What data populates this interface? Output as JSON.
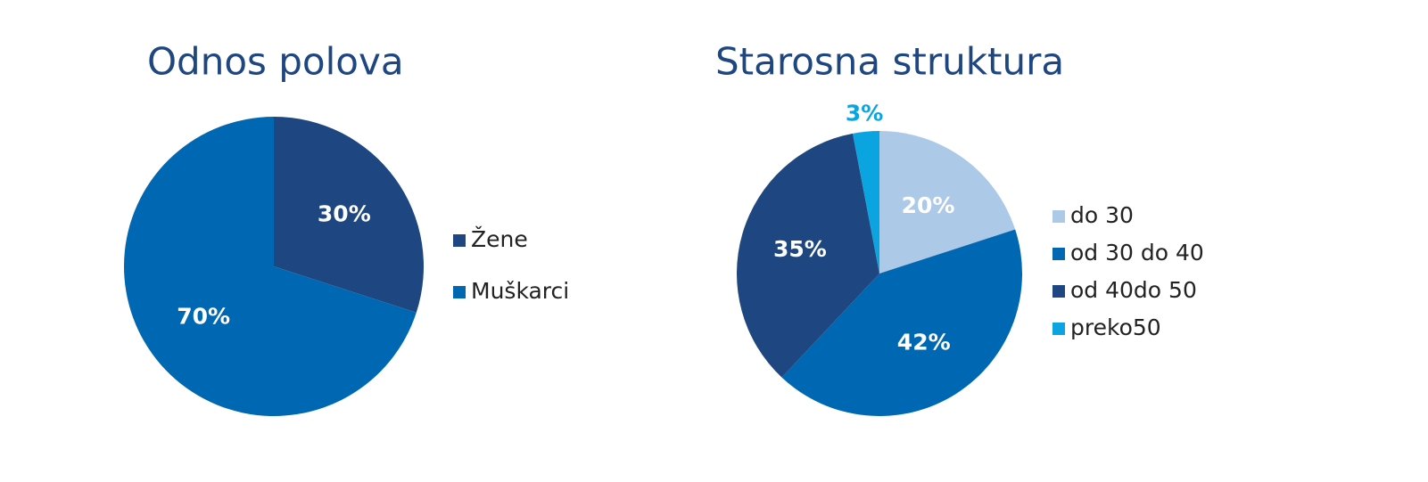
{
  "chart_data": [
    {
      "type": "pie",
      "title": "Odnos polova",
      "categories": [
        "Žene",
        "Muškarci"
      ],
      "values": [
        30,
        70
      ],
      "value_labels": [
        "30%",
        "70%"
      ],
      "colors": [
        "#1e4680",
        "#0068b3"
      ]
    },
    {
      "type": "pie",
      "title": "Starosna struktura",
      "categories": [
        "do 30",
        "od 30 do 40",
        "od 40do 50",
        "preko50"
      ],
      "values": [
        20,
        42,
        35,
        3
      ],
      "value_labels": [
        "20%",
        "42%",
        "35%",
        "3%"
      ],
      "colors": [
        "#adc9e8",
        "#0068b3",
        "#1e4680",
        "#0aa5e0"
      ]
    }
  ]
}
